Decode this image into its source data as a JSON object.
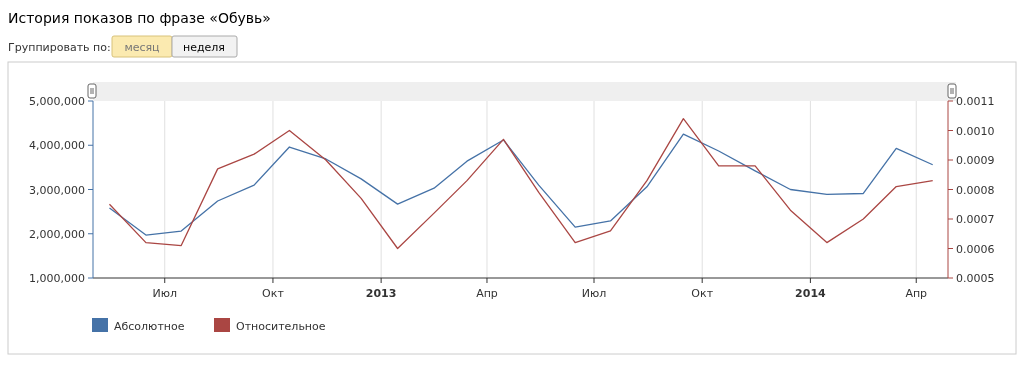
{
  "chart_data": {
    "type": "line",
    "title": "История показов по фразе «Обувь»",
    "annotations": [
      "Группировать по:",
      "месяц",
      "неделя"
    ],
    "x": [
      "2012-05-15",
      "2012-06-15",
      "2012-07-15",
      "2012-08-15",
      "2012-09-15",
      "2012-10-15",
      "2012-11-15",
      "2012-12-15",
      "2013-01-15",
      "2013-02-15",
      "2013-03-15",
      "2013-04-15",
      "2013-05-15",
      "2013-06-15",
      "2013-07-15",
      "2013-08-15",
      "2013-09-15",
      "2013-10-15",
      "2013-11-15",
      "2013-12-15",
      "2014-01-15",
      "2014-02-15",
      "2014-03-15",
      "2014-04-15"
    ],
    "series": [
      {
        "name": "Абсолютное",
        "color": "#4572a7",
        "values": [
          2580000,
          1970000,
          2060000,
          2740000,
          3100000,
          3960000,
          3690000,
          3240000,
          2670000,
          3030000,
          3640000,
          4120000,
          3100000,
          2150000,
          2290000,
          3060000,
          4250000,
          3870000,
          3420000,
          3000000,
          2890000,
          2910000,
          3930000,
          3560000
        ]
      },
      {
        "name": "Относительное",
        "color": "#aa4643",
        "axis": "y2",
        "values": [
          0.00075,
          0.00062,
          0.00061,
          0.00087,
          0.00092,
          0.001,
          0.0009,
          0.00077,
          0.0006,
          0.00072,
          0.00083,
          0.00097,
          0.00079,
          0.00062,
          0.00066,
          0.00083,
          0.00104,
          0.00088,
          0.00088,
          0.00073,
          0.00062,
          0.0007,
          0.00081,
          0.00083
        ]
      }
    ],
    "xlim": [
      "2012-05-01",
      "2014-04-28"
    ],
    "xticks": [
      {
        "value": "2012-07-01",
        "label": "Июл"
      },
      {
        "value": "2012-10-01",
        "label": "Окт"
      },
      {
        "value": "2013-01-01",
        "label": "2013"
      },
      {
        "value": "2013-04-01",
        "label": "Апр"
      },
      {
        "value": "2013-07-01",
        "label": "Июл"
      },
      {
        "value": "2013-10-01",
        "label": "Окт"
      },
      {
        "value": "2014-01-01",
        "label": "2014"
      },
      {
        "value": "2014-04-01",
        "label": "Апр"
      }
    ],
    "ylim": [
      1000000,
      5000000
    ],
    "yticks": [
      {
        "value": 1000000,
        "label": "1,000,000"
      },
      {
        "value": 2000000,
        "label": "2,000,000"
      },
      {
        "value": 3000000,
        "label": "3,000,000"
      },
      {
        "value": 4000000,
        "label": "4,000,000"
      },
      {
        "value": 5000000,
        "label": "5,000,000"
      }
    ],
    "y2lim": [
      0.0005,
      0.0011
    ],
    "y2ticks": [
      {
        "value": 0.0005,
        "label": "0.0005"
      },
      {
        "value": 0.0006,
        "label": "0.0006"
      },
      {
        "value": 0.0007,
        "label": "0.0007"
      },
      {
        "value": 0.0008,
        "label": "0.0008"
      },
      {
        "value": 0.0009,
        "label": "0.0009"
      },
      {
        "value": 0.001,
        "label": "0.0010"
      },
      {
        "value": 0.0011,
        "label": "0.0011"
      }
    ],
    "grid": "x",
    "legend": "bottom left",
    "marker": "none",
    "line_style": "solid"
  }
}
